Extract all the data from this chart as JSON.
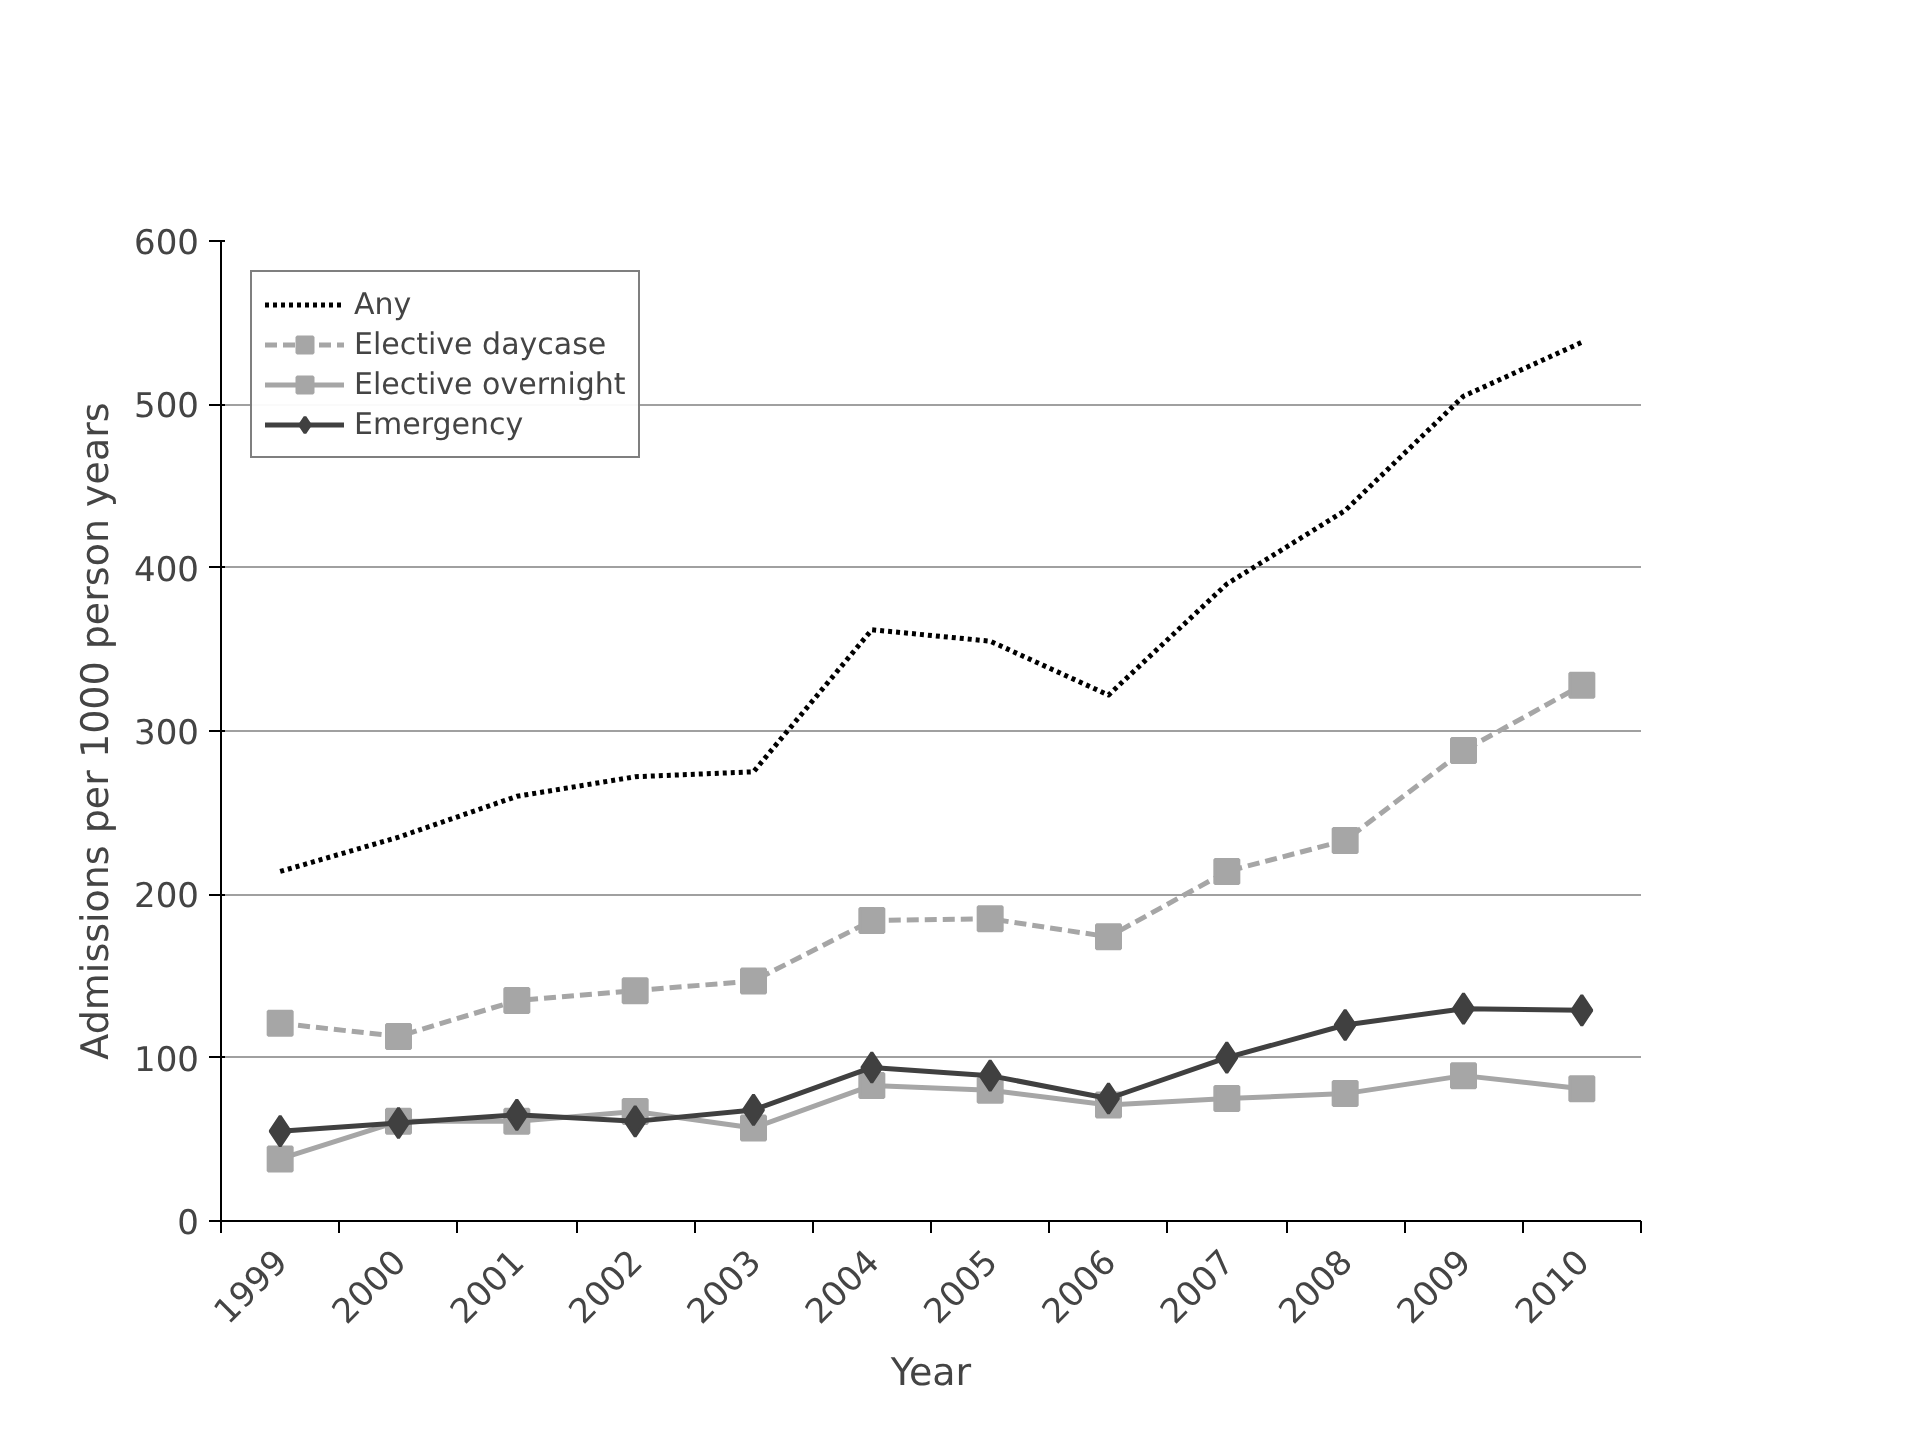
{
  "chart_data": {
    "type": "line",
    "xlabel": "Year",
    "ylabel": "Admissions per 1000 person years",
    "categories": [
      "1999",
      "2000",
      "2001",
      "2002",
      "2003",
      "2004",
      "2005",
      "2006",
      "2007",
      "2008",
      "2009",
      "2010"
    ],
    "series": [
      {
        "name": "Any",
        "color": "#000000",
        "line_style": "dotted",
        "marker": "none",
        "values": [
          214,
          235,
          260,
          272,
          275,
          362,
          355,
          322,
          390,
          435,
          505,
          538
        ]
      },
      {
        "name": "Elective daycase",
        "color": "#a6a6a6",
        "line_style": "dashed",
        "marker": "square",
        "values": [
          121,
          113,
          135,
          141,
          147,
          184,
          185,
          174,
          214,
          233,
          288,
          328
        ]
      },
      {
        "name": "Elective overnight",
        "color": "#a6a6a6",
        "line_style": "solid",
        "marker": "square",
        "values": [
          38,
          61,
          61,
          67,
          57,
          83,
          80,
          71,
          75,
          78,
          89,
          81
        ]
      },
      {
        "name": "Emergency",
        "color": "#404040",
        "line_style": "solid",
        "marker": "diamond",
        "values": [
          55,
          60,
          65,
          61,
          68,
          94,
          89,
          75,
          100,
          120,
          130,
          129
        ]
      }
    ],
    "ylim": [
      0,
      600
    ],
    "yticks": [
      0,
      100,
      200,
      300,
      400,
      500,
      600
    ],
    "grid": "y",
    "legend": "top left"
  }
}
